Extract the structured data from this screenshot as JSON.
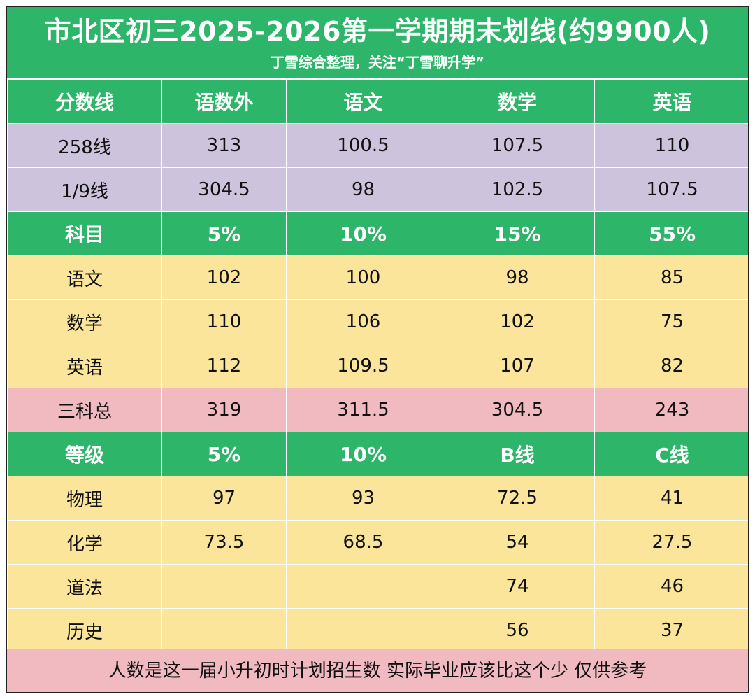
{
  "title": "市北区初三2025-2026第一学期期末划线(约9900人)",
  "subtitle": "丁雪综合整理，关注“丁雪聊升学”",
  "colors": {
    "header_green": "#2db56a",
    "purple_rows": "#cdc3dd",
    "yellow_rows": "#fbe59a",
    "pink_rows": "#f1b9c0"
  },
  "rows": [
    {
      "style": "green",
      "cells": [
        "分数线",
        "语数外",
        "语文",
        "数学",
        "英语"
      ]
    },
    {
      "style": "purple",
      "cells": [
        "258线",
        "313",
        "100.5",
        "107.5",
        "110"
      ]
    },
    {
      "style": "purple",
      "cells": [
        "1/9线",
        "304.5",
        "98",
        "102.5",
        "107.5"
      ]
    },
    {
      "style": "green",
      "cells": [
        "科目",
        "5%",
        "10%",
        "15%",
        "55%"
      ]
    },
    {
      "style": "yellow",
      "cells": [
        "语文",
        "102",
        "100",
        "98",
        "85"
      ]
    },
    {
      "style": "yellow",
      "cells": [
        "数学",
        "110",
        "106",
        "102",
        "75"
      ]
    },
    {
      "style": "yellow",
      "cells": [
        "英语",
        "112",
        "109.5",
        "107",
        "82"
      ]
    },
    {
      "style": "pink",
      "cells": [
        "三科总",
        "319",
        "311.5",
        "304.5",
        "243"
      ]
    },
    {
      "style": "green",
      "cells": [
        "等级",
        "5%",
        "10%",
        "B线",
        "C线"
      ]
    },
    {
      "style": "yellow",
      "cells": [
        "物理",
        "97",
        "93",
        "72.5",
        "41"
      ]
    },
    {
      "style": "yellow",
      "cells": [
        "化学",
        "73.5",
        "68.5",
        "54",
        "27.5"
      ]
    },
    {
      "style": "yellow",
      "cells": [
        "道法",
        "",
        "",
        "74",
        "46"
      ]
    },
    {
      "style": "yellow",
      "cells": [
        "历史",
        "",
        "",
        "56",
        "37"
      ]
    }
  ],
  "footer": "人数是这一届小升初时计划招生数  实际毕业应该比这个少  仅供参考"
}
